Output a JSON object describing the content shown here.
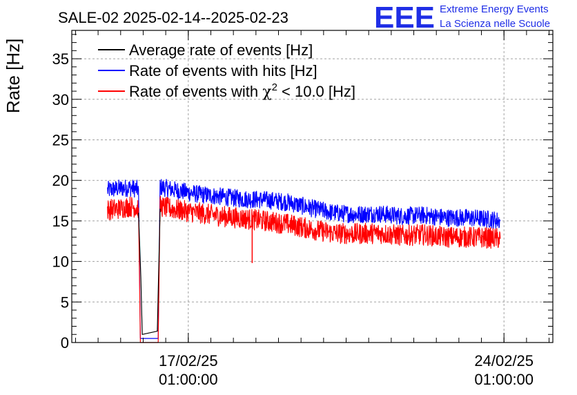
{
  "title": "SALE-02 2025-02-14--2025-02-23",
  "logo": {
    "mark": "EEE",
    "line1": "Extreme Energy Events",
    "line2": "La Scienza nelle Scuole",
    "color": "#1f2ee6"
  },
  "colors": {
    "average": "#000000",
    "hits": "#0000ff",
    "chi2": "#ff0000",
    "grid": "#a0a0a0"
  },
  "legend": [
    {
      "key": "average",
      "pre": "Average rate of events [Hz]",
      "sym": "",
      "sup": "",
      "post": ""
    },
    {
      "key": "hits",
      "pre": "Rate of events with hits [Hz]",
      "sym": "",
      "sup": "",
      "post": ""
    },
    {
      "key": "chi2",
      "pre": "Rate of events with ",
      "sym": "χ",
      "sup": "2",
      "post": " < 10.0 [Hz]"
    }
  ],
  "chart_data": {
    "type": "line",
    "title": "SALE-02 2025-02-14--2025-02-23",
    "ylabel": "Rate [Hz]",
    "xlabel": "",
    "ylim": [
      0,
      38.5
    ],
    "xlim_days": [
      "2025-02-14 11:00",
      "2025-02-25 03:00"
    ],
    "y_ticks": [
      0,
      5,
      10,
      15,
      20,
      25,
      30,
      35
    ],
    "x_ticks": [
      {
        "date": "17/02/25",
        "time": "01:00:00",
        "at": "2025-02-17 01:00"
      },
      {
        "date": "24/02/25",
        "time": "01:00:00",
        "at": "2025-02-24 01:00"
      }
    ],
    "grid": true,
    "legend_position": "top-left",
    "series": [
      {
        "name": "Rate of events with hits [Hz]",
        "color": "#0000ff",
        "noise": 1.1,
        "points": [
          [
            "2025-02-15 06:00",
            18.8
          ],
          [
            "2025-02-15 12:00",
            19.0
          ],
          [
            "2025-02-15 18:00",
            19.1
          ],
          [
            "2025-02-15 22:30",
            18.9
          ],
          [
            "2025-02-15 23:30",
            0.5
          ],
          [
            "2025-02-16 09:00",
            0.5
          ],
          [
            "2025-02-16 10:00",
            19.2
          ],
          [
            "2025-02-16 18:00",
            18.8
          ],
          [
            "2025-02-17 06:00",
            18.3
          ],
          [
            "2025-02-17 18:00",
            18.0
          ],
          [
            "2025-02-18 06:00",
            17.7
          ],
          [
            "2025-02-18 18:00",
            17.6
          ],
          [
            "2025-02-19 06:00",
            17.3
          ],
          [
            "2025-02-19 18:00",
            16.6
          ],
          [
            "2025-02-20 06:00",
            16.0
          ],
          [
            "2025-02-20 18:00",
            15.8
          ],
          [
            "2025-02-21 06:00",
            15.9
          ],
          [
            "2025-02-21 18:00",
            15.6
          ],
          [
            "2025-02-22 06:00",
            15.7
          ],
          [
            "2025-02-22 18:00",
            15.4
          ],
          [
            "2025-02-23 06:00",
            15.4
          ],
          [
            "2025-02-23 18:00",
            15.2
          ],
          [
            "2025-02-23 23:00",
            15.0
          ]
        ]
      },
      {
        "name": "Rate of events with χ2 < 10.0 [Hz]",
        "color": "#ff0000",
        "noise": 1.3,
        "points": [
          [
            "2025-02-15 06:00",
            16.4
          ],
          [
            "2025-02-15 12:00",
            16.5
          ],
          [
            "2025-02-15 18:00",
            16.8
          ],
          [
            "2025-02-15 22:30",
            16.6
          ],
          [
            "2025-02-15 23:30",
            0.0
          ],
          [
            "2025-02-16 09:00",
            0.0
          ],
          [
            "2025-02-16 10:00",
            16.8
          ],
          [
            "2025-02-16 18:00",
            16.4
          ],
          [
            "2025-02-17 06:00",
            16.0
          ],
          [
            "2025-02-17 18:00",
            15.6
          ],
          [
            "2025-02-18 06:00",
            15.3
          ],
          [
            "2025-02-18 18:00",
            15.0
          ],
          [
            "2025-02-19 06:00",
            14.6
          ],
          [
            "2025-02-19 18:00",
            14.0
          ],
          [
            "2025-02-20 06:00",
            13.5
          ],
          [
            "2025-02-20 18:00",
            13.4
          ],
          [
            "2025-02-21 06:00",
            13.5
          ],
          [
            "2025-02-21 18:00",
            13.2
          ],
          [
            "2025-02-22 06:00",
            13.3
          ],
          [
            "2025-02-22 18:00",
            13.0
          ],
          [
            "2025-02-23 06:00",
            13.0
          ],
          [
            "2025-02-23 18:00",
            12.9
          ],
          [
            "2025-02-23 23:00",
            12.8
          ]
        ],
        "spikes": [
          [
            "2025-02-18 11:00",
            9.8
          ]
        ]
      },
      {
        "name": "Average rate of events [Hz]",
        "color": "#000000",
        "noise": 0,
        "points": [
          [
            "2025-02-15 22:30",
            16.0
          ],
          [
            "2025-02-15 23:45",
            8.0
          ],
          [
            "2025-02-16 00:30",
            1.0
          ],
          [
            "2025-02-16 08:30",
            1.4
          ],
          [
            "2025-02-16 10:00",
            16.5
          ]
        ]
      }
    ]
  }
}
